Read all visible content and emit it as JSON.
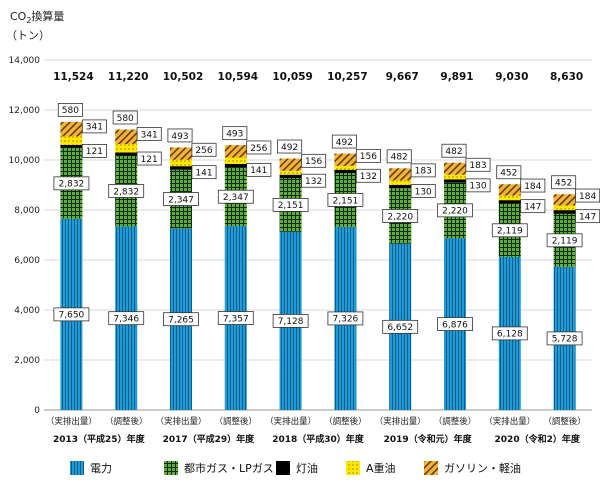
{
  "chart_data": {
    "type": "bar",
    "stacked": true,
    "title": "",
    "ylabel_line1": "CO",
    "ylabel_sub": "2",
    "ylabel_line1b": "換算量",
    "ylabel_line2": "（トン）",
    "ylim": [
      0,
      14000
    ],
    "yticks": [
      0,
      2000,
      4000,
      6000,
      8000,
      10000,
      12000,
      14000
    ],
    "ytick_labels": [
      "0",
      "2,000",
      "4,000",
      "6,000",
      "8,000",
      "10,000",
      "12,000",
      "14,000"
    ],
    "grid": true,
    "categories": [
      "（実排出量）",
      "（調整後）",
      "（実排出量）",
      "（調整後）",
      "（実排出量）",
      "（調整後）",
      "（実排出量）",
      "（調整後）",
      "（実排出量）",
      "（調整後）"
    ],
    "groups": [
      "2013（平成25）年度",
      "2017（平成29）年度",
      "2018（平成30）年度",
      "2019（令和元）年度",
      "2020（令和2）年度"
    ],
    "totals": [
      "11,524",
      "11,220",
      "10,502",
      "10,594",
      "10,059",
      "10,257",
      "9,667",
      "9,891",
      "9,030",
      "8,630"
    ],
    "series": [
      {
        "name": "電力",
        "color": "#1f9bd7",
        "pattern": "vertical-stripes",
        "values": [
          7650,
          7346,
          7265,
          7357,
          7128,
          7326,
          6652,
          6876,
          6128,
          5728
        ],
        "labels": [
          "7,650",
          "7,346",
          "7,265",
          "7,357",
          "7,128",
          "7,326",
          "6,652",
          "6,876",
          "6,128",
          "5,728"
        ]
      },
      {
        "name": "都市ガス・LPガス",
        "color": "#4a9a2c",
        "pattern": "grid",
        "values": [
          2832,
          2832,
          2347,
          2347,
          2151,
          2151,
          2220,
          2220,
          2119,
          2119
        ],
        "labels": [
          "2,832",
          "2,832",
          "2,347",
          "2,347",
          "2,151",
          "2,151",
          "2,220",
          "2,220",
          "2,119",
          "2,119"
        ]
      },
      {
        "name": "灯油",
        "color": "#000000",
        "pattern": "solid",
        "values": [
          121,
          121,
          141,
          141,
          132,
          132,
          130,
          130,
          147,
          147
        ],
        "labels": [
          "121",
          "121",
          "141",
          "141",
          "132",
          "132",
          "130",
          "130",
          "147",
          "147"
        ]
      },
      {
        "name": "A重油",
        "color": "#ffe800",
        "pattern": "dots",
        "values": [
          341,
          341,
          256,
          256,
          156,
          156,
          183,
          183,
          184,
          184
        ],
        "labels": [
          "341",
          "341",
          "256",
          "256",
          "156",
          "156",
          "183",
          "183",
          "184",
          "184"
        ]
      },
      {
        "name": "ガソリン・軽油",
        "color": "#e3a020",
        "pattern": "diagonal",
        "values": [
          580,
          580,
          493,
          493,
          492,
          492,
          482,
          482,
          452,
          452
        ],
        "labels": [
          "580",
          "580",
          "493",
          "493",
          "492",
          "492",
          "482",
          "482",
          "452",
          "452"
        ]
      }
    ],
    "legend_position": "bottom"
  }
}
